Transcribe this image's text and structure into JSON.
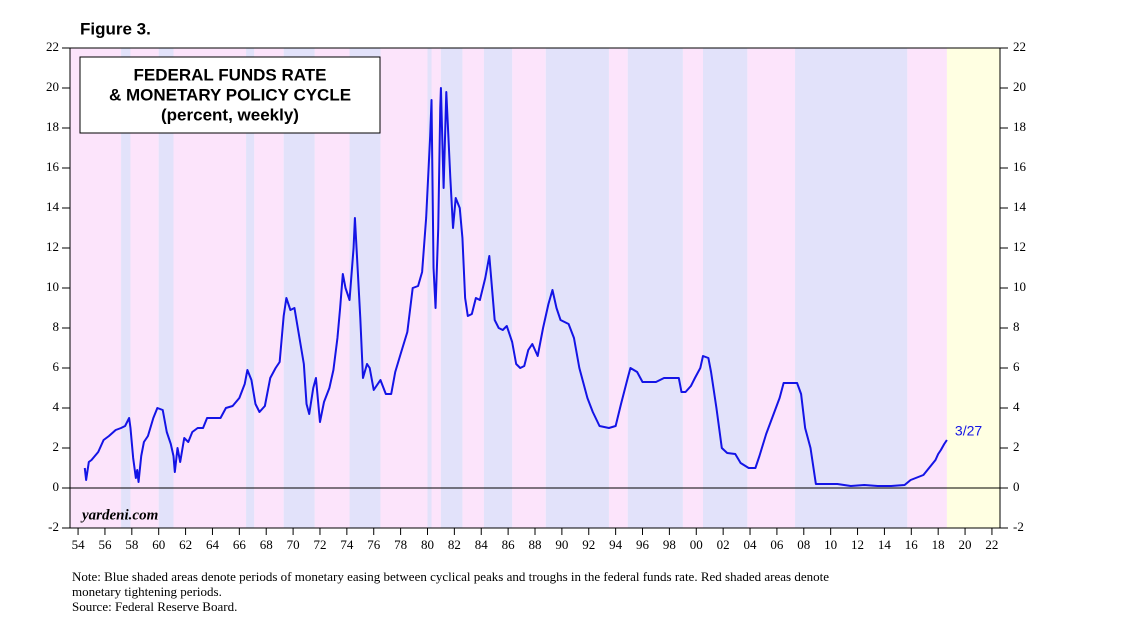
{
  "chart_data": {
    "type": "line",
    "figure_label": "Figure 3.",
    "title_lines": [
      "FEDERAL FUNDS RATE",
      "& MONETARY POLICY CYCLE",
      "(percent, weekly)"
    ],
    "watermark": "yardeni.com",
    "end_annotation": "3/27",
    "note_lines": [
      "Note: Blue shaded areas denote periods of monetary easing between cyclical peaks and troughs in the federal funds rate. Red shaded areas denote",
      "monetary tightening periods.",
      "Source: Federal Reserve Board."
    ],
    "xlim": [
      1953.4,
      2022.6
    ],
    "ylim": [
      -2,
      22
    ],
    "yticks": [
      -2,
      0,
      2,
      4,
      6,
      8,
      10,
      12,
      14,
      16,
      18,
      20,
      22
    ],
    "xticks": [
      {
        "value": 1954,
        "label": "54"
      },
      {
        "value": 1956,
        "label": "56"
      },
      {
        "value": 1958,
        "label": "58"
      },
      {
        "value": 1960,
        "label": "60"
      },
      {
        "value": 1962,
        "label": "62"
      },
      {
        "value": 1964,
        "label": "64"
      },
      {
        "value": 1966,
        "label": "66"
      },
      {
        "value": 1968,
        "label": "68"
      },
      {
        "value": 1970,
        "label": "70"
      },
      {
        "value": 1972,
        "label": "72"
      },
      {
        "value": 1974,
        "label": "74"
      },
      {
        "value": 1976,
        "label": "76"
      },
      {
        "value": 1978,
        "label": "78"
      },
      {
        "value": 1980,
        "label": "80"
      },
      {
        "value": 1982,
        "label": "82"
      },
      {
        "value": 1984,
        "label": "84"
      },
      {
        "value": 1986,
        "label": "86"
      },
      {
        "value": 1988,
        "label": "88"
      },
      {
        "value": 1990,
        "label": "90"
      },
      {
        "value": 1992,
        "label": "92"
      },
      {
        "value": 1994,
        "label": "94"
      },
      {
        "value": 1996,
        "label": "96"
      },
      {
        "value": 1998,
        "label": "98"
      },
      {
        "value": 2000,
        "label": "00"
      },
      {
        "value": 2002,
        "label": "02"
      },
      {
        "value": 2004,
        "label": "04"
      },
      {
        "value": 2006,
        "label": "06"
      },
      {
        "value": 2008,
        "label": "08"
      },
      {
        "value": 2010,
        "label": "10"
      },
      {
        "value": 2012,
        "label": "12"
      },
      {
        "value": 2014,
        "label": "14"
      },
      {
        "value": 2016,
        "label": "16"
      },
      {
        "value": 2018,
        "label": "18"
      },
      {
        "value": 2020,
        "label": "20"
      },
      {
        "value": 2022,
        "label": "22"
      }
    ],
    "easing_periods": [
      [
        1957.2,
        1957.9
      ],
      [
        1960.0,
        1961.1
      ],
      [
        1966.5,
        1967.1
      ],
      [
        1969.3,
        1971.6
      ],
      [
        1974.2,
        1976.5
      ],
      [
        1980.0,
        1980.3
      ],
      [
        1981.0,
        1982.6
      ],
      [
        1984.2,
        1986.3
      ],
      [
        1988.8,
        1993.5
      ],
      [
        1994.9,
        1999.0
      ],
      [
        2000.5,
        2003.8
      ],
      [
        2007.35,
        2015.7
      ]
    ],
    "tightening_periods": [
      [
        1953.4,
        1957.2
      ],
      [
        1957.9,
        1960.0
      ],
      [
        1961.1,
        1966.5
      ],
      [
        1967.1,
        1969.3
      ],
      [
        1971.6,
        1974.2
      ],
      [
        1976.5,
        1980.0
      ],
      [
        1980.3,
        1981.0
      ],
      [
        1982.6,
        1984.2
      ],
      [
        1986.3,
        1988.8
      ],
      [
        1993.5,
        1994.9
      ],
      [
        1999.0,
        2000.5
      ],
      [
        2003.8,
        2007.35
      ],
      [
        2015.7,
        2018.65
      ]
    ],
    "future_period": [
      2018.65,
      2022.6
    ],
    "easing_color": "#e2e2fa",
    "tightening_color": "#fce4fb",
    "future_color": "#ffffe2",
    "x": [
      1954.5,
      1954.6,
      1954.8,
      1955.0,
      1955.5,
      1955.9,
      1956.3,
      1956.8,
      1957.2,
      1957.5,
      1957.8,
      1957.9,
      1958.1,
      1958.3,
      1958.4,
      1958.5,
      1958.7,
      1958.9,
      1959.2,
      1959.6,
      1959.9,
      1960.3,
      1960.6,
      1960.9,
      1961.1,
      1961.2,
      1961.4,
      1961.6,
      1961.9,
      1962.2,
      1962.5,
      1962.9,
      1963.3,
      1963.6,
      1964.0,
      1964.6,
      1965.0,
      1965.5,
      1966.0,
      1966.4,
      1966.6,
      1966.9,
      1967.2,
      1967.5,
      1967.9,
      1968.3,
      1968.7,
      1969.0,
      1969.3,
      1969.5,
      1969.8,
      1970.1,
      1970.4,
      1970.8,
      1971.0,
      1971.2,
      1971.5,
      1971.7,
      1972.0,
      1972.3,
      1972.7,
      1973.0,
      1973.3,
      1973.5,
      1973.7,
      1973.9,
      1974.2,
      1974.5,
      1974.6,
      1974.8,
      1975.0,
      1975.2,
      1975.5,
      1975.7,
      1976.0,
      1976.5,
      1976.9,
      1977.3,
      1977.6,
      1978.0,
      1978.5,
      1978.9,
      1979.3,
      1979.6,
      1979.9,
      1980.2,
      1980.3,
      1980.45,
      1980.6,
      1980.8,
      1980.95,
      1981.0,
      1981.2,
      1981.4,
      1981.7,
      1981.9,
      1982.1,
      1982.4,
      1982.6,
      1982.8,
      1983.0,
      1983.3,
      1983.6,
      1983.9,
      1984.3,
      1984.6,
      1984.8,
      1985.0,
      1985.3,
      1985.6,
      1985.9,
      1986.3,
      1986.6,
      1986.9,
      1987.2,
      1987.5,
      1987.8,
      1988.2,
      1988.6,
      1989.0,
      1989.3,
      1989.6,
      1989.9,
      1990.5,
      1990.9,
      1991.3,
      1991.9,
      1992.3,
      1992.8,
      1993.5,
      1994.0,
      1994.4,
      1994.9,
      1995.1,
      1995.6,
      1996.0,
      1996.6,
      1997.0,
      1997.6,
      1998.2,
      1998.7,
      1998.9,
      1999.2,
      1999.6,
      1999.9,
      2000.3,
      2000.5,
      2000.9,
      2001.1,
      2001.5,
      2001.9,
      2002.3,
      2002.9,
      2003.3,
      2003.9,
      2004.4,
      2004.7,
      2005.2,
      2005.7,
      2006.2,
      2006.5,
      2007.0,
      2007.5,
      2007.8,
      2008.1,
      2008.5,
      2008.9,
      2009.5,
      2010.5,
      2011.5,
      2012.5,
      2013.5,
      2014.5,
      2015.5,
      2015.95,
      2016.9,
      2017.2,
      2017.5,
      2017.8,
      2018.0,
      2018.2,
      2018.45,
      2018.65
    ],
    "series": [
      {
        "name": "Federal funds rate",
        "color": "#1414e6",
        "values": [
          1.0,
          0.4,
          1.3,
          1.4,
          1.8,
          2.4,
          2.6,
          2.9,
          3.0,
          3.1,
          3.5,
          3.0,
          1.5,
          0.5,
          0.9,
          0.3,
          1.6,
          2.3,
          2.6,
          3.5,
          4.0,
          3.9,
          2.8,
          2.2,
          1.6,
          0.8,
          2.0,
          1.3,
          2.5,
          2.3,
          2.8,
          3.0,
          3.0,
          3.5,
          3.5,
          3.5,
          4.0,
          4.1,
          4.5,
          5.2,
          5.9,
          5.4,
          4.2,
          3.8,
          4.1,
          5.5,
          6.0,
          6.3,
          8.6,
          9.5,
          8.9,
          9.0,
          7.8,
          6.2,
          4.2,
          3.7,
          5.0,
          5.5,
          3.3,
          4.3,
          5.0,
          5.9,
          7.5,
          9.0,
          10.7,
          10.0,
          9.4,
          12.0,
          13.5,
          11.0,
          8.5,
          5.5,
          6.2,
          6.0,
          4.9,
          5.4,
          4.7,
          4.7,
          5.8,
          6.7,
          7.8,
          10.0,
          10.1,
          10.8,
          13.5,
          17.6,
          19.4,
          11.0,
          9.0,
          13.0,
          19.0,
          20.0,
          15.0,
          19.8,
          15.5,
          13.0,
          14.5,
          14.0,
          12.5,
          9.5,
          8.6,
          8.7,
          9.5,
          9.4,
          10.5,
          11.6,
          10.0,
          8.4,
          8.0,
          7.9,
          8.1,
          7.3,
          6.2,
          6.0,
          6.1,
          6.9,
          7.2,
          6.6,
          8.0,
          9.2,
          9.9,
          9.0,
          8.4,
          8.2,
          7.5,
          6.0,
          4.5,
          3.8,
          3.1,
          3.0,
          3.1,
          4.2,
          5.5,
          6.0,
          5.8,
          5.3,
          5.3,
          5.3,
          5.5,
          5.5,
          5.5,
          4.8,
          4.8,
          5.1,
          5.5,
          6.0,
          6.6,
          6.5,
          5.8,
          4.0,
          2.0,
          1.75,
          1.7,
          1.25,
          1.0,
          1.0,
          1.6,
          2.7,
          3.6,
          4.5,
          5.25,
          5.25,
          5.25,
          4.7,
          3.0,
          2.0,
          0.2,
          0.2,
          0.2,
          0.1,
          0.15,
          0.1,
          0.1,
          0.15,
          0.4,
          0.65,
          0.9,
          1.15,
          1.4,
          1.7,
          1.9,
          2.2,
          2.4
        ]
      }
    ]
  }
}
